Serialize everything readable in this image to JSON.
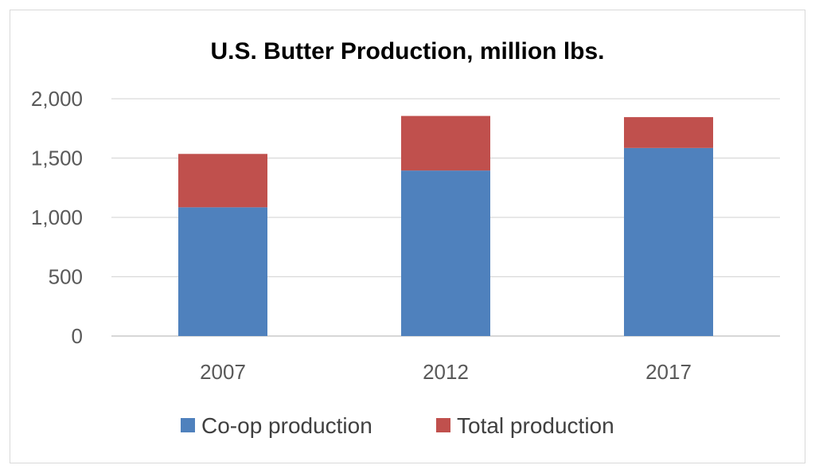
{
  "chart_data": {
    "type": "bar",
    "stacked": true,
    "title": "U.S. Butter Production, million lbs.",
    "xlabel": "",
    "ylabel": "",
    "categories": [
      "2007",
      "2012",
      "2017"
    ],
    "series": [
      {
        "name": "Co-op production",
        "values": [
          1085,
          1395,
          1585
        ],
        "color": "#4f81bd"
      },
      {
        "name": "Total production",
        "values": [
          450,
          460,
          260
        ],
        "color": "#c0504d"
      }
    ],
    "ylim": [
      0,
      2000
    ],
    "yticks": [
      0,
      500,
      1000,
      1500,
      2000
    ],
    "ytick_labels": [
      "0",
      "500",
      "1,000",
      "1,500",
      "2,000"
    ],
    "grid": true,
    "legend_position": "bottom"
  }
}
